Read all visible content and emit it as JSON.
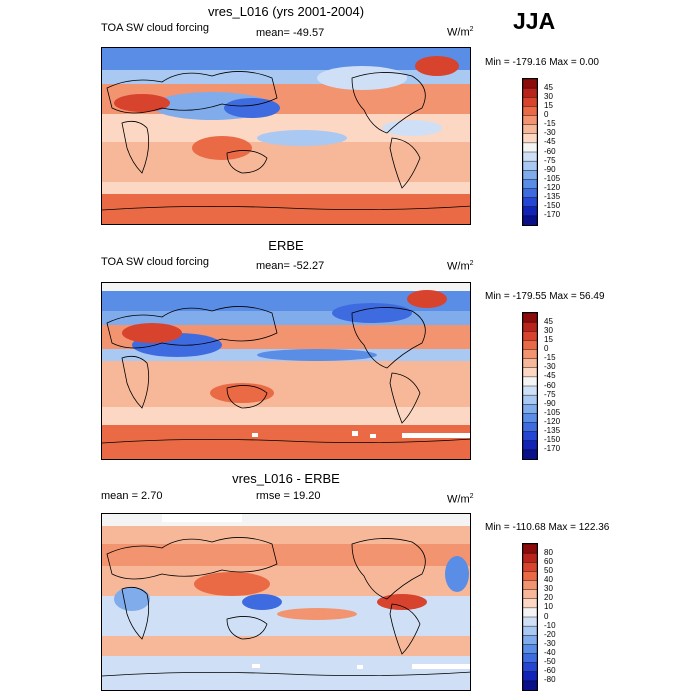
{
  "season": "JJA",
  "panels": [
    {
      "title": "vres_L016 (yrs 2001-2004)",
      "left_label": "TOA SW cloud forcing",
      "center_label": "mean= -49.57",
      "units": "W/m",
      "units_sup": "2",
      "minmax": "Min = -179.16 Max =   0.00",
      "colorbar_levels": [
        "45",
        "30",
        "15",
        "0",
        "-15",
        "-30",
        "-45",
        "-60",
        "-75",
        "-90",
        "-105",
        "-120",
        "-135",
        "-150",
        "-170"
      ],
      "colorbar_colors": [
        "#8c0b0b",
        "#b8231c",
        "#d8432d",
        "#ea6a45",
        "#f39470",
        "#f7b89a",
        "#fbd7c4",
        "#f4f4f4",
        "#cfe0f6",
        "#a9c8f2",
        "#80acec",
        "#5a8de6",
        "#3f6be0",
        "#2546d4",
        "#1224b8",
        "#0a0f8a"
      ]
    },
    {
      "title": "ERBE",
      "left_label": "TOA SW cloud forcing",
      "center_label": "mean= -52.27",
      "units": "W/m",
      "units_sup": "2",
      "minmax": "Min = -179.55 Max =  56.49",
      "colorbar_levels": [
        "45",
        "30",
        "15",
        "0",
        "-15",
        "-30",
        "-45",
        "-60",
        "-75",
        "-90",
        "-105",
        "-120",
        "-135",
        "-150",
        "-170"
      ],
      "colorbar_colors": [
        "#8c0b0b",
        "#b8231c",
        "#d8432d",
        "#ea6a45",
        "#f39470",
        "#f7b89a",
        "#fbd7c4",
        "#f4f4f4",
        "#cfe0f6",
        "#a9c8f2",
        "#80acec",
        "#5a8de6",
        "#3f6be0",
        "#2546d4",
        "#1224b8",
        "#0a0f8a"
      ]
    },
    {
      "title": "vres_L016 - ERBE",
      "left_label": "mean =   2.70",
      "center_label": "rmse =  19.20",
      "units": "W/m",
      "units_sup": "2",
      "minmax": "Min = -110.68 Max = 122.36",
      "colorbar_levels": [
        "80",
        "60",
        "50",
        "40",
        "30",
        "20",
        "10",
        "0",
        "-10",
        "-20",
        "-30",
        "-40",
        "-50",
        "-60",
        "-80"
      ],
      "colorbar_colors": [
        "#8c0b0b",
        "#b8231c",
        "#d8432d",
        "#ea6a45",
        "#f39470",
        "#f7b89a",
        "#fbd7c4",
        "#f4f4f4",
        "#cfe0f6",
        "#a9c8f2",
        "#80acec",
        "#5a8de6",
        "#3f6be0",
        "#2546d4",
        "#1224b8",
        "#0a0f8a"
      ]
    }
  ]
}
